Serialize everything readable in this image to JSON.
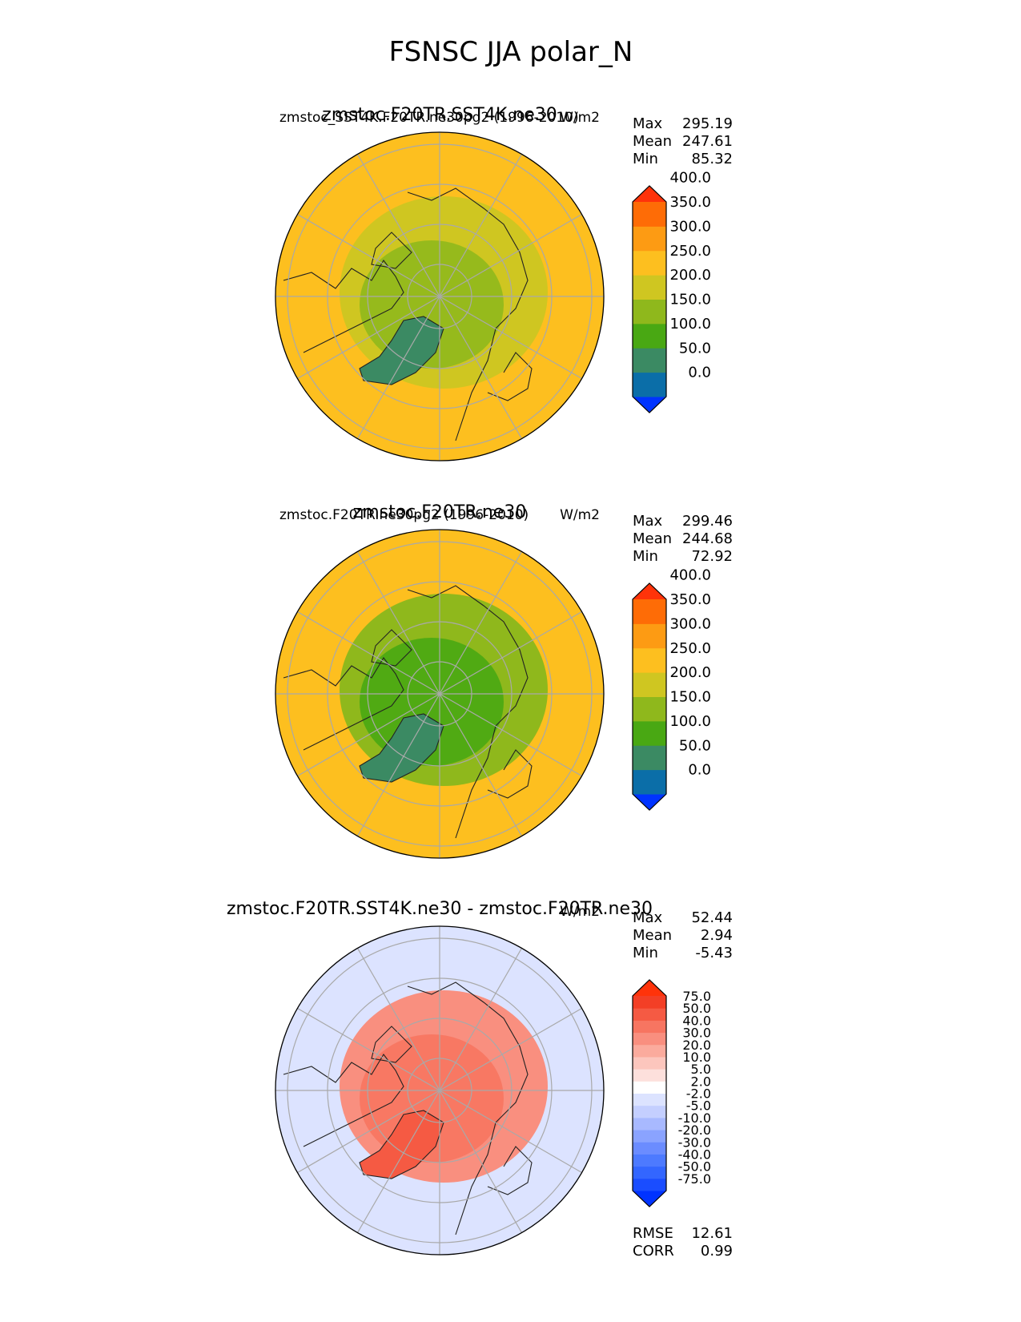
{
  "figure_title": "FSNSC JJA polar_N",
  "chart_data": [
    {
      "type": "heatmap",
      "projection": "north polar stereographic",
      "title_left": "zmstoc_SST4K.F20TR.ne30pg2 (1996-2010)",
      "title_center": "zmstoc.F20TR.SST4K.ne30",
      "title_right": "W/m2",
      "stats": [
        {
          "label": "Max",
          "value": "295.19"
        },
        {
          "label": "Mean",
          "value": "247.61"
        },
        {
          "label": "Min",
          "value": "85.32"
        }
      ],
      "colorbar": {
        "extend": "both",
        "colors": [
          "#0033ff",
          "#0b6ea8",
          "#3b8a63",
          "#49a813",
          "#8fb81c",
          "#cfc621",
          "#fdbf1f",
          "#fd9b13",
          "#fe6c06",
          "#ff330a"
        ],
        "tick_labels": [
          "0.0",
          "50.0",
          "100.0",
          "150.0",
          "200.0",
          "250.0",
          "300.0",
          "350.0",
          "400.0"
        ]
      },
      "field_summary": {
        "background_color": "#fdbf1f",
        "high_latitude_color": "#cfc621",
        "inner_color": "#8fb81c",
        "greenland_color": "#3b8a63"
      }
    },
    {
      "type": "heatmap",
      "projection": "north polar stereographic",
      "title_left": "zmstoc.F20TR.ne30pg2 (1996-2010)",
      "title_center": "zmstoc.F20TR.ne30",
      "title_right": "W/m2",
      "stats": [
        {
          "label": "Max",
          "value": "299.46"
        },
        {
          "label": "Mean",
          "value": "244.68"
        },
        {
          "label": "Min",
          "value": "72.92"
        }
      ],
      "colorbar": {
        "extend": "both",
        "colors": [
          "#0033ff",
          "#0b6ea8",
          "#3b8a63",
          "#49a813",
          "#8fb81c",
          "#cfc621",
          "#fdbf1f",
          "#fd9b13",
          "#fe6c06",
          "#ff330a"
        ],
        "tick_labels": [
          "0.0",
          "50.0",
          "100.0",
          "150.0",
          "200.0",
          "250.0",
          "300.0",
          "350.0",
          "400.0"
        ]
      },
      "field_summary": {
        "background_color": "#fdbf1f",
        "high_latitude_color": "#8fb81c",
        "inner_color": "#49a813",
        "greenland_color": "#3b8a63"
      }
    },
    {
      "type": "heatmap",
      "projection": "north polar stereographic",
      "title_center": "zmstoc.F20TR.SST4K.ne30 - zmstoc.F20TR.ne30",
      "title_right": "W/m2",
      "stats": [
        {
          "label": "Max",
          "value": "52.44"
        },
        {
          "label": "Mean",
          "value": "2.94"
        },
        {
          "label": "Min",
          "value": "-5.43"
        }
      ],
      "colorbar": {
        "extend": "both",
        "colors": [
          "#0033ff",
          "#1a4dff",
          "#3366ff",
          "#4d7aff",
          "#6b8cff",
          "#8aa3ff",
          "#a8b9ff",
          "#c4cfff",
          "#dce3ff",
          "#ffffff",
          "#fde0dc",
          "#fcc6bd",
          "#fbab9d",
          "#f98f7f",
          "#f77561",
          "#f55a43",
          "#f33f26",
          "#ff330a"
        ],
        "tick_labels": [
          "-75.0",
          "-50.0",
          "-40.0",
          "-30.0",
          "-20.0",
          "-10.0",
          "-5.0",
          "-2.0",
          "2.0",
          "5.0",
          "10.0",
          "20.0",
          "30.0",
          "40.0",
          "50.0",
          "75.0"
        ]
      },
      "field_summary": {
        "background_color": "#dce3ff",
        "high_latitude_color": "#f98f7f",
        "inner_color": "#f77561",
        "greenland_color": "#f55a43"
      }
    }
  ],
  "footer_stats": [
    {
      "label": "RMSE",
      "value": "12.61"
    },
    {
      "label": "CORR",
      "value": "0.99"
    }
  ]
}
